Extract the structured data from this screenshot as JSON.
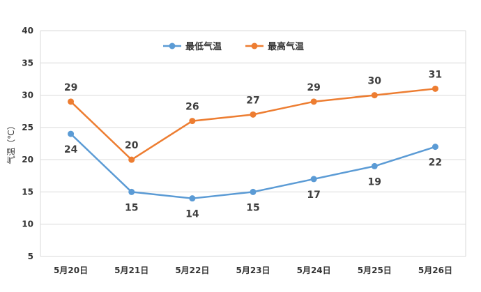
{
  "chart_data": {
    "type": "line",
    "categories": [
      "5月20日",
      "5月21日",
      "5月22日",
      "5月23日",
      "5月24日",
      "5月25日",
      "5月26日"
    ],
    "series": [
      {
        "name": "最低气温",
        "values": [
          24,
          15,
          14,
          15,
          17,
          19,
          22
        ],
        "color": "#5b9bd5"
      },
      {
        "name": "最高气温",
        "values": [
          29,
          20,
          26,
          27,
          29,
          30,
          31
        ],
        "color": "#ed7d31"
      }
    ],
    "ylabel": "气温（℃）",
    "ylim": [
      5,
      40
    ],
    "yticks": [
      5,
      10,
      15,
      20,
      25,
      30,
      35,
      40
    ],
    "grid": true,
    "legend": "top-center",
    "data_labels": true
  }
}
